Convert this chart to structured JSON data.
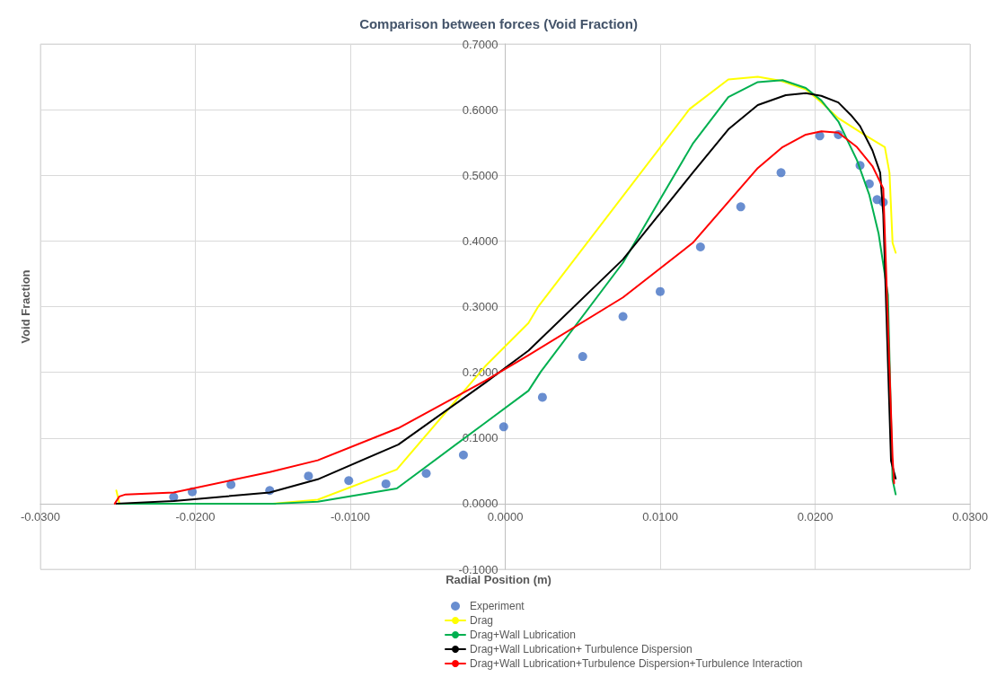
{
  "chart_data": {
    "type": "line",
    "title": "Comparison between forces (Void Fraction)",
    "xlabel": "Radial Position (m)",
    "ylabel": "Void Fraction",
    "xlim": [
      -0.03,
      0.03
    ],
    "xticks": [
      {
        "value": -0.03,
        "label": "-0.0300"
      },
      {
        "value": -0.02,
        "label": "-0.0200"
      },
      {
        "value": -0.01,
        "label": "-0.0100"
      },
      {
        "value": 0,
        "label": "0.0000"
      },
      {
        "value": 0.01,
        "label": "0.0100"
      },
      {
        "value": 0.02,
        "label": "0.0200"
      },
      {
        "value": 0.03,
        "label": "0.0300"
      }
    ],
    "ylim": [
      -0.1,
      0.7
    ],
    "yticks": [
      {
        "value": -0.1,
        "label": "-0.1000"
      },
      {
        "value": 0,
        "label": "0.0000"
      },
      {
        "value": 0.1,
        "label": "0.1000"
      },
      {
        "value": 0.2,
        "label": "0.2000"
      },
      {
        "value": 0.3,
        "label": "0.3000"
      },
      {
        "value": 0.4,
        "label": "0.4000"
      },
      {
        "value": 0.5,
        "label": "0.5000"
      },
      {
        "value": 0.6,
        "label": "0.6000"
      },
      {
        "value": 0.7,
        "label": "0.7000"
      }
    ],
    "grid": true,
    "legend": "bottom",
    "series": [
      {
        "name": "Experiment",
        "type": "scatter",
        "marker": "circle",
        "color": "#4472c4",
        "x": [
          -0.0214,
          -0.0202,
          -0.0177,
          -0.0152,
          -0.0127,
          -0.0101,
          -0.0077,
          -0.0051,
          -0.0027,
          -0.0001,
          0.0024,
          0.005,
          0.0076,
          0.01,
          0.0126,
          0.0152,
          0.0178,
          0.0203,
          0.0215,
          0.0229,
          0.0235,
          0.024,
          0.0244
        ],
        "values": [
          0.01,
          0.018,
          0.029,
          0.02,
          0.042,
          0.035,
          0.03,
          0.046,
          0.074,
          0.117,
          0.162,
          0.224,
          0.285,
          0.323,
          0.391,
          0.452,
          0.504,
          0.56,
          0.562,
          0.515,
          0.487,
          0.463,
          0.459
        ]
      },
      {
        "name": "Drag",
        "type": "line",
        "marker": "none",
        "color": "#ffff00",
        "x": [
          -0.0251,
          -0.0249,
          -0.015,
          -0.0121,
          -0.007,
          -0.0013,
          0.0015,
          0.0021,
          0.0119,
          0.0144,
          0.0163,
          0.0178,
          0.0194,
          0.0204,
          0.0215,
          0.0233,
          0.0245,
          0.0248,
          0.025,
          0.0252
        ],
        "values": [
          0.02,
          0,
          0,
          0.006,
          0.052,
          0.209,
          0.275,
          0.299,
          0.601,
          0.646,
          0.65,
          0.644,
          0.631,
          0.611,
          0.587,
          0.56,
          0.543,
          0.504,
          0.397,
          0.382
        ]
      },
      {
        "name": "Drag+Wall Lubrication",
        "type": "line",
        "marker": "none",
        "color": "#00b050",
        "x": [
          -0.025,
          -0.0148,
          -0.0121,
          -0.007,
          -0.0013,
          0.0015,
          0.0023,
          0.0076,
          0.0121,
          0.0144,
          0.0163,
          0.0179,
          0.0194,
          0.0204,
          0.0215,
          0.0227,
          0.0235,
          0.0241,
          0.0247,
          0.025,
          0.0252
        ],
        "values": [
          0,
          0,
          0.003,
          0.023,
          0.123,
          0.172,
          0.201,
          0.367,
          0.548,
          0.619,
          0.642,
          0.645,
          0.633,
          0.614,
          0.582,
          0.523,
          0.47,
          0.411,
          0.318,
          0.036,
          0.014
        ]
      },
      {
        "name": "Drag+Wall Lubrication+ Turbulence Dispersion",
        "type": "line",
        "marker": "none",
        "color": "#000000",
        "x": [
          -0.0251,
          -0.0214,
          -0.0152,
          -0.0121,
          -0.0069,
          -0.0013,
          0.0015,
          0.0076,
          0.0121,
          0.0144,
          0.0163,
          0.0181,
          0.0194,
          0.0204,
          0.0215,
          0.0223,
          0.0229,
          0.0237,
          0.0242,
          0.0244,
          0.0249,
          0.0252
        ],
        "values": [
          0,
          0.004,
          0.017,
          0.037,
          0.09,
          0.184,
          0.233,
          0.372,
          0.504,
          0.57,
          0.607,
          0.622,
          0.625,
          0.621,
          0.611,
          0.592,
          0.575,
          0.538,
          0.504,
          0.44,
          0.065,
          0.038
        ]
      },
      {
        "name": "Drag+Wall Lubrication+Turbulence Dispersion+Turbulence Interaction",
        "type": "line",
        "marker": "none",
        "color": "#ff0000",
        "x": [
          -0.0252,
          -0.0249,
          -0.0245,
          -0.0214,
          -0.0152,
          -0.0121,
          -0.0069,
          -0.0013,
          0.0015,
          0.0076,
          0.0121,
          0.0163,
          0.0179,
          0.0194,
          0.0204,
          0.0215,
          0.0227,
          0.0237,
          0.0244,
          0.025,
          0.0251
        ],
        "values": [
          0,
          0.011,
          0.014,
          0.017,
          0.048,
          0.066,
          0.115,
          0.187,
          0.226,
          0.314,
          0.397,
          0.511,
          0.543,
          0.562,
          0.567,
          0.565,
          0.543,
          0.514,
          0.48,
          0.07,
          0.031
        ]
      }
    ]
  }
}
